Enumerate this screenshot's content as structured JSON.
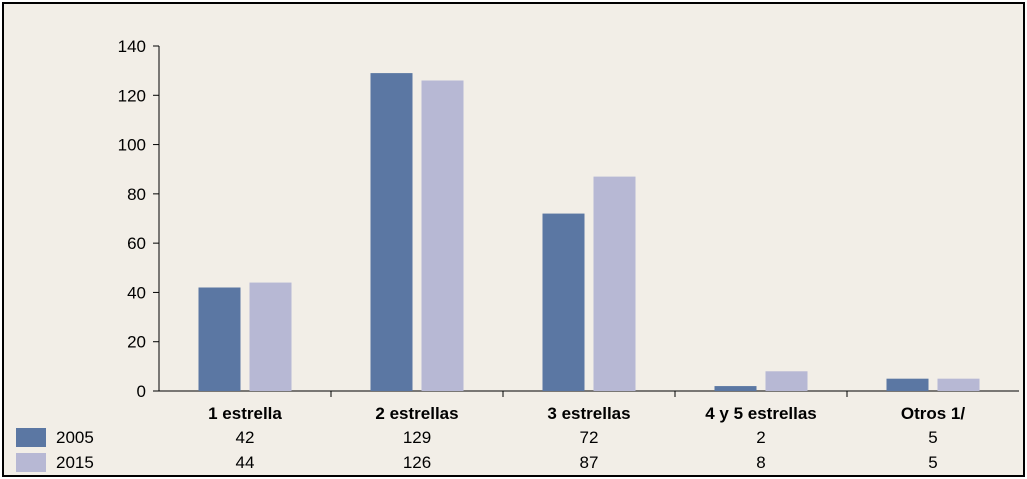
{
  "chart_data": {
    "type": "bar",
    "categories": [
      "1 estrella",
      "2 estrellas",
      "3 estrellas",
      "4 y 5 estrellas",
      "Otros 1/"
    ],
    "series": [
      {
        "name": "2005",
        "values": [
          42,
          129,
          72,
          2,
          5
        ],
        "color": "#5b77a3"
      },
      {
        "name": "2015",
        "values": [
          44,
          126,
          87,
          8,
          5
        ],
        "color": "#b7b8d4"
      }
    ],
    "yticks": [
      0,
      20,
      40,
      60,
      80,
      100,
      120,
      140
    ],
    "ylim": [
      0,
      140
    ],
    "title": "",
    "xlabel": "",
    "ylabel": "",
    "grid": false,
    "legend": "data-table"
  }
}
